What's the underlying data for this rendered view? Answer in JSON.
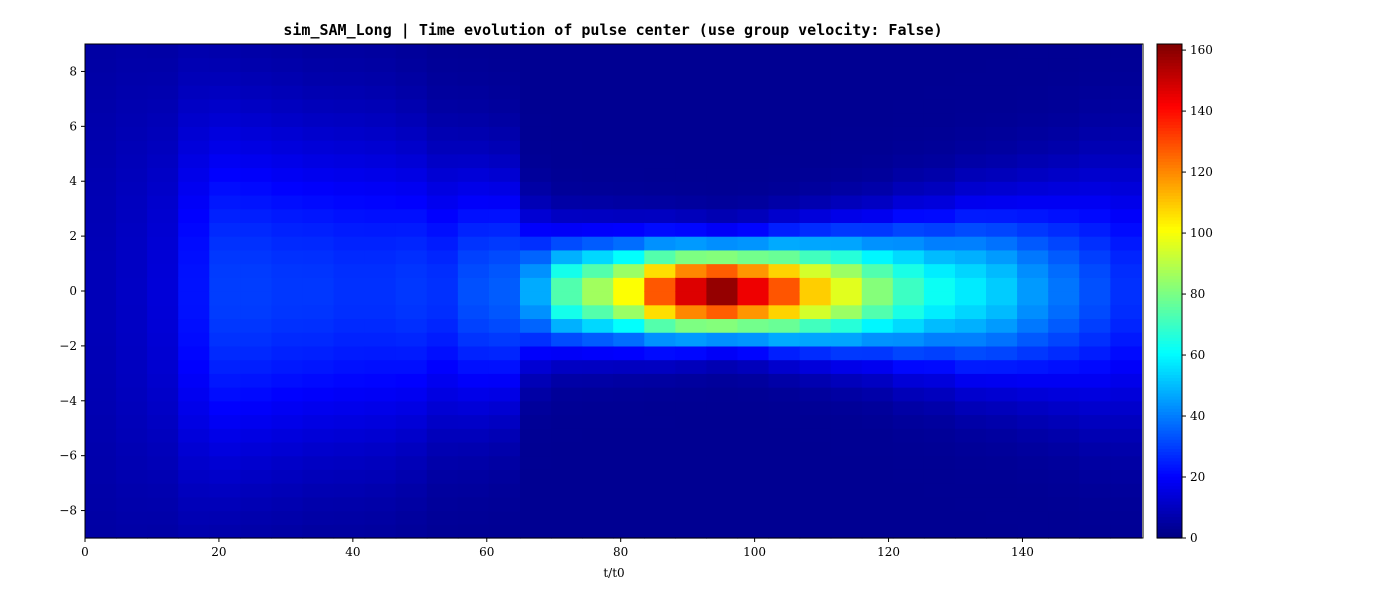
{
  "chart_data": {
    "type": "heatmap",
    "title": "sim_SAM_Long | Time evolution of pulse center (use group velocity: False)",
    "xlabel": "t/t0",
    "ylabel": "",
    "xlim": [
      0,
      158
    ],
    "ylim": [
      -9,
      9
    ],
    "x_ticks": [
      0,
      20,
      40,
      60,
      80,
      100,
      120,
      140
    ],
    "y_ticks": [
      -8,
      -6,
      -4,
      -2,
      0,
      2,
      4,
      6,
      8
    ],
    "colormap": "jet",
    "colorbar": {
      "vmin": 0,
      "vmax": 162,
      "ticks": [
        0,
        20,
        40,
        60,
        80,
        100,
        120,
        140,
        160
      ]
    },
    "grid": false,
    "n_time_bins": 34,
    "time_bin_width": 4.64,
    "y_profile_bins": 36,
    "column_profiles": [
      {
        "t_start": 0.0,
        "peak": 6,
        "width": 7.0
      },
      {
        "t_start": 4.64,
        "peak": 8,
        "width": 6.5
      },
      {
        "t_start": 9.28,
        "peak": 11,
        "width": 5.5
      },
      {
        "t_start": 13.92,
        "peak": 20,
        "width": 5.0
      },
      {
        "t_start": 18.56,
        "peak": 27,
        "width": 4.5
      },
      {
        "t_start": 23.2,
        "peak": 27,
        "width": 4.3
      },
      {
        "t_start": 27.84,
        "peak": 26,
        "width": 4.2
      },
      {
        "t_start": 32.48,
        "peak": 26,
        "width": 4.0
      },
      {
        "t_start": 37.12,
        "peak": 25,
        "width": 4.0
      },
      {
        "t_start": 41.76,
        "peak": 25,
        "width": 3.9
      },
      {
        "t_start": 46.4,
        "peak": 26,
        "width": 3.6
      },
      {
        "t_start": 51.04,
        "peak": 25,
        "width": 3.2
      },
      {
        "t_start": 55.68,
        "peak": 30,
        "width": 3.0
      },
      {
        "t_start": 60.32,
        "peak": 32,
        "width": 2.8
      },
      {
        "t_start": 64.96,
        "peak": 45,
        "width": 1.6
      },
      {
        "t_start": 69.6,
        "peak": 72,
        "width": 1.3
      },
      {
        "t_start": 74.24,
        "peak": 85,
        "width": 1.25
      },
      {
        "t_start": 78.88,
        "peak": 100,
        "width": 1.2
      },
      {
        "t_start": 83.52,
        "peak": 128,
        "width": 1.15
      },
      {
        "t_start": 88.16,
        "peak": 148,
        "width": 1.1
      },
      {
        "t_start": 92.8,
        "peak": 160,
        "width": 1.05
      },
      {
        "t_start": 97.44,
        "peak": 145,
        "width": 1.1
      },
      {
        "t_start": 102.08,
        "peak": 128,
        "width": 1.2
      },
      {
        "t_start": 106.72,
        "peak": 108,
        "width": 1.3
      },
      {
        "t_start": 111.36,
        "peak": 95,
        "width": 1.4
      },
      {
        "t_start": 116.0,
        "peak": 80,
        "width": 1.5
      },
      {
        "t_start": 120.64,
        "peak": 68,
        "width": 1.7
      },
      {
        "t_start": 125.28,
        "peak": 60,
        "width": 1.8
      },
      {
        "t_start": 129.92,
        "peak": 55,
        "width": 2.0
      },
      {
        "t_start": 134.56,
        "peak": 50,
        "width": 2.1
      },
      {
        "t_start": 139.2,
        "peak": 42,
        "width": 2.3
      },
      {
        "t_start": 143.84,
        "peak": 36,
        "width": 2.5
      },
      {
        "t_start": 148.48,
        "peak": 30,
        "width": 2.8
      },
      {
        "t_start": 153.12,
        "peak": 25,
        "width": 3.0
      }
    ]
  }
}
